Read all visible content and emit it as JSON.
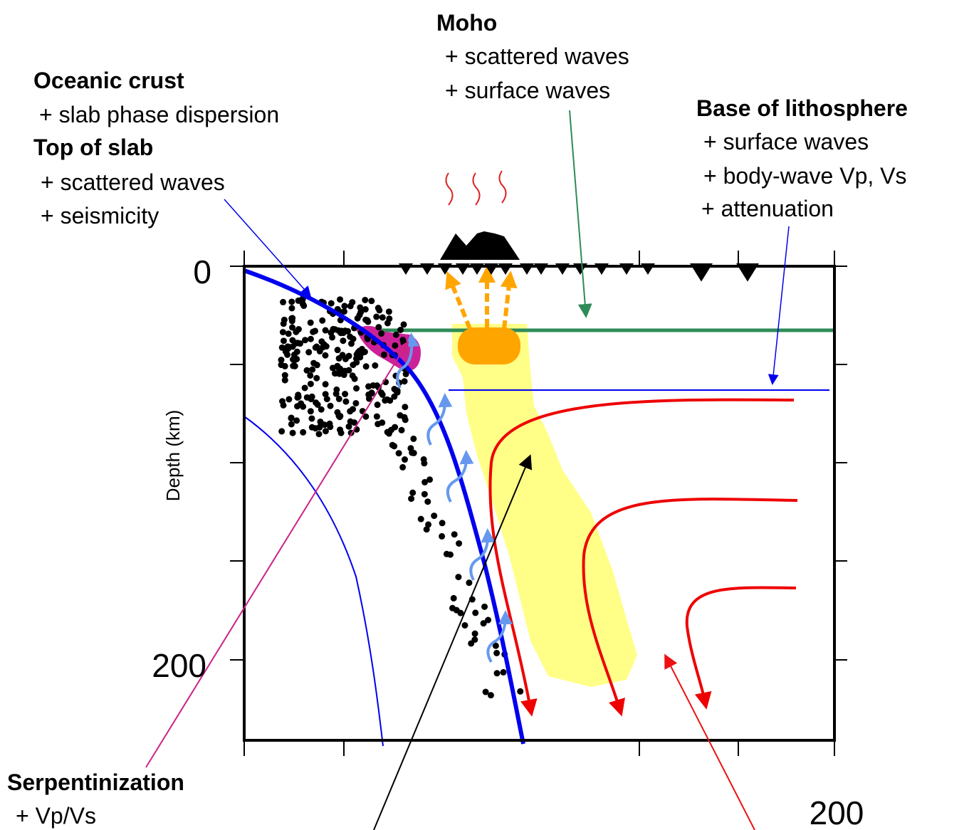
{
  "annotations": [
    {
      "title": "Moho",
      "items": [
        "+ scattered waves",
        "+ surface waves"
      ]
    },
    {
      "title": "Oceanic crust",
      "items": [
        "+ slab phase dispersion"
      ]
    },
    {
      "title": "Top of slab",
      "items": [
        "+ scattered waves",
        "+ seismicity"
      ]
    },
    {
      "title": "Base of lithosphere",
      "items": [
        "+ surface waves",
        "+ body-wave Vp, Vs",
        "+ attenuation"
      ]
    },
    {
      "title": "Serpentinization",
      "items": [
        "+ Vp/Vs"
      ]
    }
  ],
  "axes": {
    "y_label": "Depth (km)",
    "y_ticks": [
      "0",
      "200"
    ],
    "x_ticks": [
      "200"
    ]
  }
}
